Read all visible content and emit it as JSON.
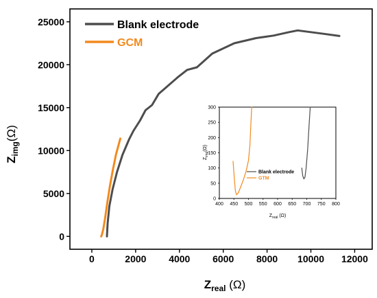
{
  "chart_data": [
    {
      "type": "line",
      "xlabel_main": "Z",
      "xlabel_sub": "real",
      "xlabel_unit": " (Ω)",
      "ylabel_main": "Z",
      "ylabel_sub": "img",
      "ylabel_unit": "(Ω)",
      "xlim": [
        -1000,
        12800
      ],
      "ylim": [
        -1500,
        26500
      ],
      "xticks": [
        0,
        2000,
        4000,
        6000,
        8000,
        10000,
        12000
      ],
      "xtick_labels": [
        "0",
        "2000",
        "4000",
        "6000",
        "8000",
        "10000",
        "12000"
      ],
      "yticks": [
        0,
        5000,
        10000,
        15000,
        20000,
        25000
      ],
      "ytick_labels": [
        "0",
        "5000",
        "10000",
        "15000",
        "20000",
        "25000"
      ],
      "legend_position": "top-left",
      "series": [
        {
          "name": "Blank electrode",
          "color": "#4d4d4d",
          "points": [
            [
              690,
              0
            ],
            [
              720,
              1500
            ],
            [
              800,
              3500
            ],
            [
              950,
              5500
            ],
            [
              1150,
              7500
            ],
            [
              1400,
              9500
            ],
            [
              1700,
              11300
            ],
            [
              1900,
              12300
            ],
            [
              2200,
              13500
            ],
            [
              2450,
              14700
            ],
            [
              2750,
              15300
            ],
            [
              3050,
              16600
            ],
            [
              3500,
              17600
            ],
            [
              3950,
              18600
            ],
            [
              4350,
              19400
            ],
            [
              4800,
              19700
            ],
            [
              5500,
              21300
            ],
            [
              6500,
              22500
            ],
            [
              7500,
              23100
            ],
            [
              8300,
              23400
            ],
            [
              9000,
              23800
            ],
            [
              9400,
              24000
            ],
            [
              10000,
              23800
            ],
            [
              10600,
              23600
            ],
            [
              11300,
              23350
            ]
          ]
        },
        {
          "name": "GCM",
          "color": "#f28a1e",
          "points": [
            [
              430,
              0
            ],
            [
              460,
              200
            ],
            [
              520,
              800
            ],
            [
              600,
              2000
            ],
            [
              700,
              3800
            ],
            [
              820,
              5800
            ],
            [
              950,
              7600
            ],
            [
              1100,
              9500
            ],
            [
              1300,
              11400
            ]
          ]
        }
      ]
    },
    {
      "type": "line",
      "xlabel_main": "Z",
      "xlabel_sub": "real",
      "xlabel_unit": " (Ω)",
      "ylabel_main": "Z",
      "ylabel_sub": "img",
      "ylabel_unit": "(Ω)",
      "xlim": [
        400,
        800
      ],
      "ylim": [
        0,
        300
      ],
      "xticks": [
        400,
        450,
        500,
        550,
        600,
        650,
        700,
        750,
        800
      ],
      "xtick_labels": [
        "400",
        "450",
        "500",
        "550",
        "600",
        "650",
        "700",
        "750",
        "800"
      ],
      "yticks": [
        0,
        50,
        100,
        150,
        200,
        250,
        300
      ],
      "ytick_labels": [
        "0",
        "50",
        "100",
        "150",
        "200",
        "250",
        "300"
      ],
      "legend_position": "right",
      "series": [
        {
          "name": "Blank electrode",
          "color": "#4d4d4d",
          "points": [
            [
              683,
              100
            ],
            [
              686,
              75
            ],
            [
              690,
              64
            ],
            [
              694,
              70
            ],
            [
              698,
              100
            ],
            [
              703,
              160
            ],
            [
              708,
              240
            ],
            [
              712,
              300
            ]
          ]
        },
        {
          "name": "GTM",
          "color": "#f28a1e",
          "points": [
            [
              447,
              122
            ],
            [
              451,
              70
            ],
            [
              455,
              25
            ],
            [
              459,
              12
            ],
            [
              465,
              18
            ],
            [
              472,
              35
            ],
            [
              482,
              60
            ],
            [
              492,
              90
            ],
            [
              500,
              125
            ],
            [
              505,
              175
            ],
            [
              508,
              240
            ],
            [
              511,
              300
            ]
          ]
        }
      ]
    }
  ]
}
